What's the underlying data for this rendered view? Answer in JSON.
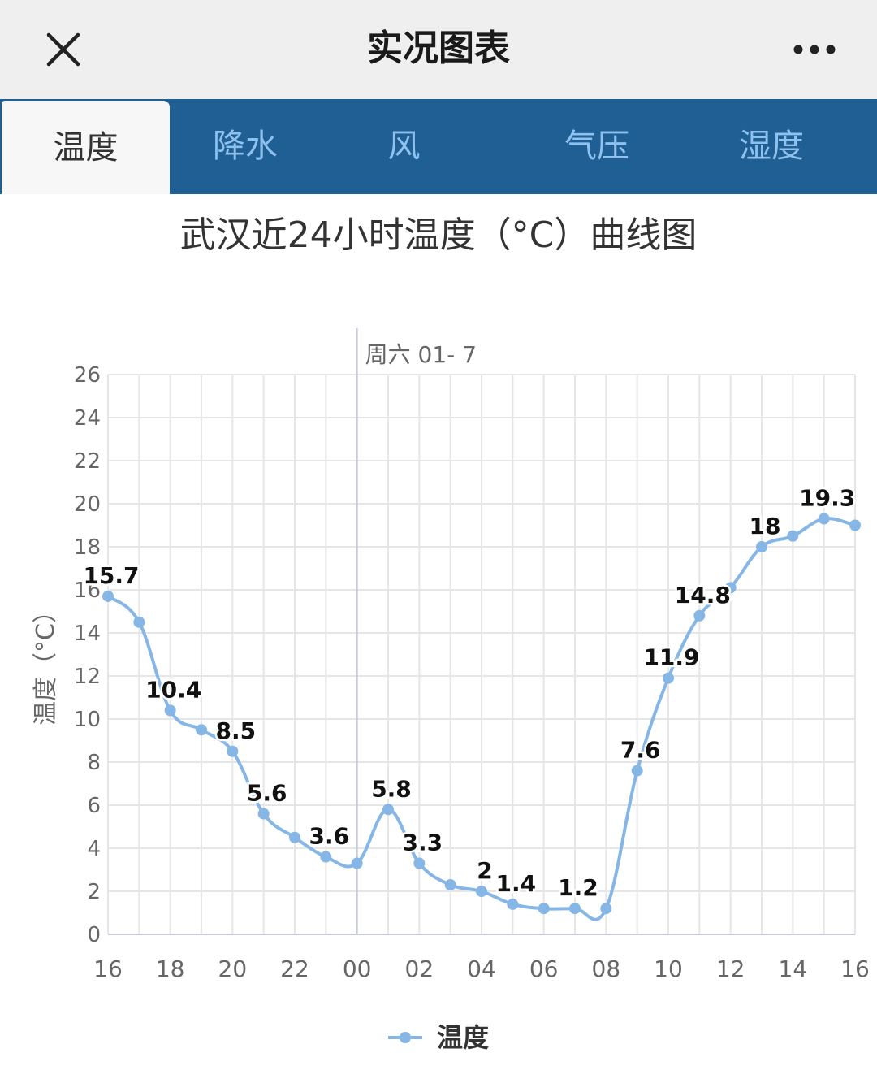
{
  "header": {
    "title": "实况图表",
    "close_icon": "close-icon",
    "more_icon": "more-dots-icon"
  },
  "tabs": [
    {
      "label": "温度",
      "active": true
    },
    {
      "label": "降水",
      "active": false
    },
    {
      "label": "风",
      "active": false
    },
    {
      "label": "气压",
      "active": false
    },
    {
      "label": "湿度",
      "active": false
    }
  ],
  "colors": {
    "tabbar": "#1f5f93",
    "tab_inactive_text": "#8ec1ee",
    "series": "#86b6e6"
  },
  "chart_data": {
    "type": "line",
    "title": "武汉近24小时温度（°C）曲线图",
    "ylabel": "温度（°C）",
    "xlabel": "",
    "day_marker": "周六 01- 7",
    "ylim": [
      0,
      26
    ],
    "yticks": [
      "0",
      "2",
      "4",
      "6",
      "8",
      "10",
      "12",
      "14",
      "16",
      "18",
      "20",
      "22",
      "24",
      "26"
    ],
    "xticks": [
      "16",
      "18",
      "20",
      "22",
      "00",
      "02",
      "04",
      "06",
      "08",
      "10",
      "12",
      "14",
      "16"
    ],
    "x": [
      "16",
      "17",
      "18",
      "19",
      "20",
      "21",
      "22",
      "23",
      "00",
      "01",
      "02",
      "03",
      "04",
      "05",
      "06",
      "07",
      "08",
      "09",
      "10",
      "11",
      "12",
      "13",
      "14",
      "15",
      "16"
    ],
    "grid": true,
    "legend_position": "bottom",
    "series": [
      {
        "name": "温度",
        "values": [
          15.7,
          14.5,
          10.4,
          9.5,
          8.5,
          5.6,
          4.5,
          3.6,
          3.3,
          5.8,
          3.3,
          2.3,
          2.0,
          1.4,
          1.2,
          1.2,
          1.2,
          7.6,
          11.9,
          14.8,
          16.1,
          18.0,
          18.5,
          19.3,
          19.0
        ],
        "labels": [
          "15.7",
          "",
          "10.4",
          "",
          "8.5",
          "5.6",
          "",
          "3.6",
          "",
          "5.8",
          "3.3",
          "",
          "2",
          "1.4",
          "",
          "1.2",
          "",
          "7.6",
          "11.9",
          "14.8",
          "",
          "18",
          "",
          "19.3",
          ""
        ]
      }
    ]
  }
}
